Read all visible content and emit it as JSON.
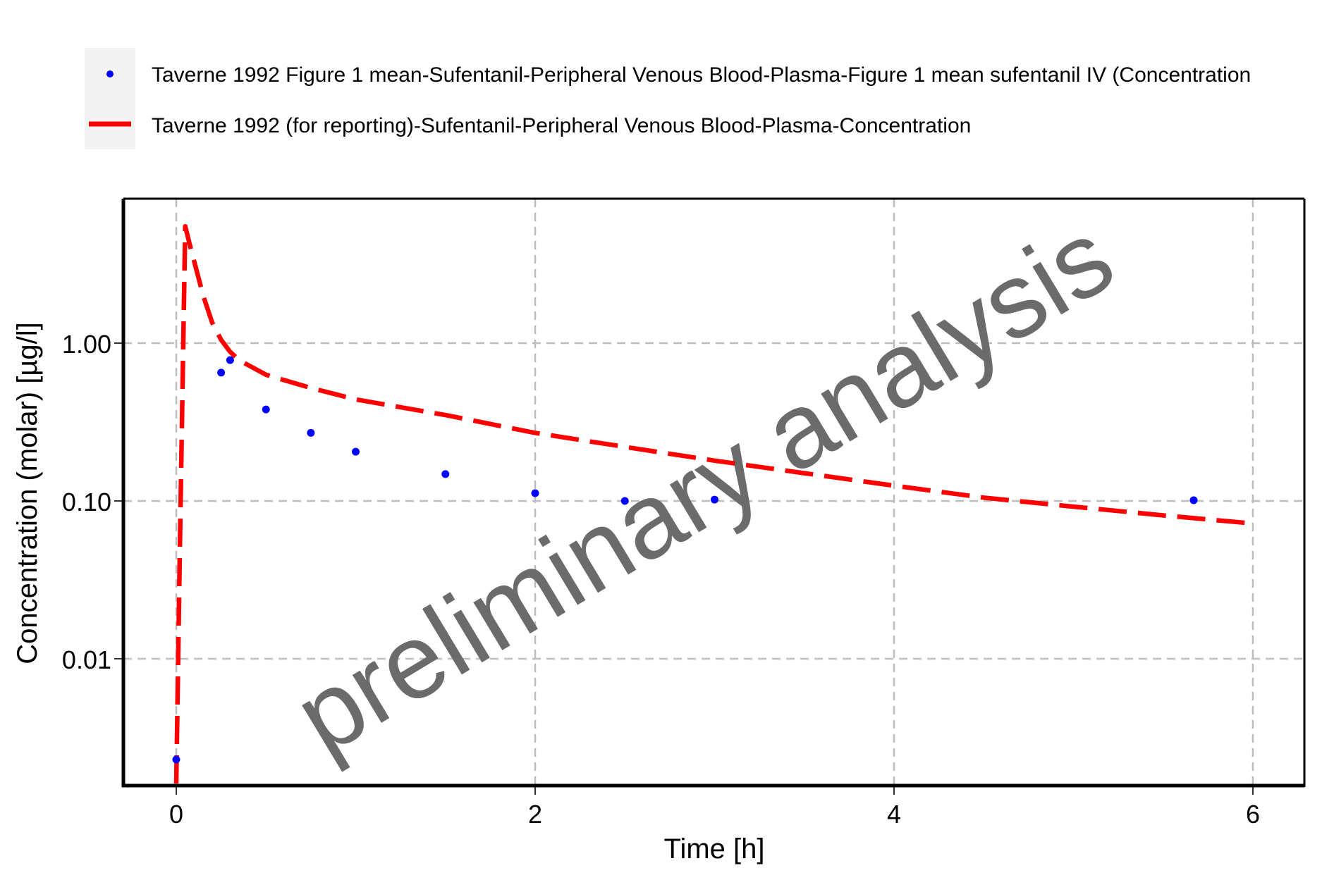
{
  "chart_data": {
    "type": "scatter",
    "title": "",
    "xlabel": "Time [h]",
    "ylabel": "Concentration (molar) [µg/l]",
    "x_ticks": [
      "0",
      "2",
      "4",
      "6"
    ],
    "y_ticks": [
      "1.00",
      "0.10",
      "0.01"
    ],
    "xlim": [
      -0.3,
      6.3
    ],
    "ylim": [
      0.0015,
      7.0
    ],
    "yscale": "log",
    "grid": true,
    "legend_position": "top",
    "watermark": "preliminary analysis",
    "series": [
      {
        "name": "Taverne 1992 Figure 1 mean-Sufentanil-Peripheral Venous Blood-Plasma-Figure 1 mean sufentanil IV (Concentration",
        "type": "scatter",
        "color": "#0000ff",
        "x": [
          0,
          0.25,
          0.3,
          0.5,
          0.75,
          1.0,
          1.5,
          2.0,
          2.5,
          3.0,
          5.67
        ],
        "y": [
          0.0023,
          0.65,
          0.78,
          0.38,
          0.27,
          0.205,
          0.148,
          0.112,
          0.1,
          0.102,
          0.101
        ]
      },
      {
        "name": "Taverne 1992 (for reporting)-Sufentanil-Peripheral Venous Blood-Plasma-Concentration",
        "type": "line",
        "style": "dashed",
        "color": "#ff0000",
        "x": [
          0,
          0.02,
          0.05,
          0.08,
          0.1,
          0.15,
          0.2,
          0.25,
          0.3,
          0.35,
          0.5,
          0.75,
          1.0,
          1.5,
          2.0,
          2.5,
          3.0,
          3.5,
          4.0,
          4.5,
          5.0,
          5.5,
          6.0
        ],
        "y": [
          0.0015,
          0.05,
          5.5,
          4.0,
          3.3,
          2.0,
          1.35,
          1.05,
          0.88,
          0.78,
          0.63,
          0.52,
          0.44,
          0.35,
          0.27,
          0.22,
          0.18,
          0.15,
          0.125,
          0.105,
          0.092,
          0.081,
          0.072
        ]
      }
    ]
  }
}
